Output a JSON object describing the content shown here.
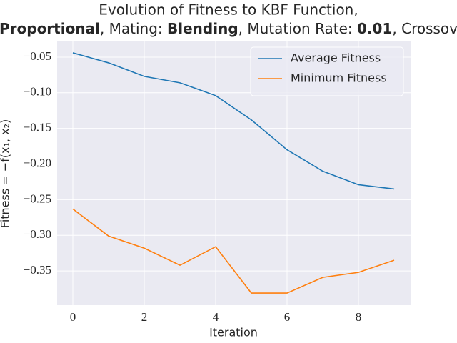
{
  "chart_data": {
    "type": "line",
    "title": "Evolution of Fitness to KBF Function,",
    "subtitle_parts": [
      {
        "text": "Proportional",
        "bold": true
      },
      {
        "text": ", Mating: ",
        "bold": false
      },
      {
        "text": "Blending",
        "bold": true
      },
      {
        "text": ", Mutation Rate: ",
        "bold": false
      },
      {
        "text": "0.01",
        "bold": true
      },
      {
        "text": ", Crossov",
        "bold": false
      }
    ],
    "x_label": "Iteration",
    "y_label": "Fitness = −f(x₁, x₂)",
    "x": [
      0,
      1,
      2,
      3,
      4,
      5,
      6,
      7,
      8,
      9
    ],
    "series": [
      {
        "name": "Average Fitness",
        "color": "#1f77b4",
        "values": [
          -0.044,
          -0.058,
          -0.077,
          -0.086,
          -0.104,
          -0.138,
          -0.18,
          -0.21,
          -0.229,
          -0.235
        ]
      },
      {
        "name": "Minimum Fitness",
        "color": "#ff7f0e",
        "values": [
          -0.263,
          -0.301,
          -0.318,
          -0.342,
          -0.316,
          -0.381,
          -0.381,
          -0.359,
          -0.352,
          -0.335
        ]
      }
    ],
    "xlim": [
      -0.44,
      9.46
    ],
    "xticks": [
      0,
      2,
      4,
      6,
      8
    ],
    "ylim": [
      -0.398,
      -0.028
    ],
    "yticks": [
      {
        "value": -0.05,
        "label": "−0.05"
      },
      {
        "value": -0.1,
        "label": "−0.10"
      },
      {
        "value": -0.15,
        "label": "−0.15"
      },
      {
        "value": -0.2,
        "label": "−0.20"
      },
      {
        "value": -0.25,
        "label": "−0.25"
      },
      {
        "value": -0.3,
        "label": "−0.30"
      },
      {
        "value": -0.35,
        "label": "−0.35"
      }
    ],
    "grid": true,
    "legend": "upper-right"
  }
}
